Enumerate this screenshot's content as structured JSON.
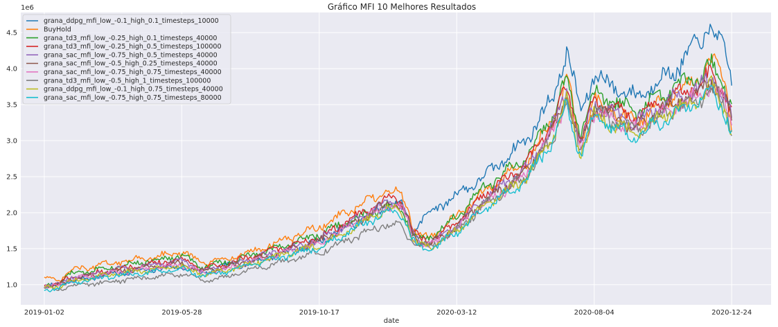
{
  "chart_data": {
    "type": "line",
    "title": "Gráfico MFI 10 Melhores Resultados",
    "xlabel": "date",
    "ylabel": "",
    "y_multiplier_label": "1e6",
    "ylim": [
      0.72,
      4.78
    ],
    "y_ticks": [
      "1.0",
      "1.5",
      "2.0",
      "2.5",
      "3.0",
      "3.5",
      "4.0",
      "4.5"
    ],
    "x_ticks": [
      "2019-01-02",
      "2019-05-28",
      "2019-10-17",
      "2020-03-12",
      "2020-08-04",
      "2020-12-24"
    ],
    "xlim": [
      -0.0342,
      1.0573
    ],
    "grid": true,
    "legend_position": "top-left",
    "x": [
      0.0,
      0.02,
      0.04,
      0.1,
      0.2,
      0.23,
      0.26,
      0.3,
      0.4,
      0.5,
      0.52,
      0.53,
      0.535,
      0.545,
      0.56,
      0.6,
      0.64,
      0.7,
      0.74,
      0.76,
      0.78,
      0.8,
      0.86,
      0.92,
      0.95,
      0.97,
      0.99,
      1.0
    ],
    "series": [
      {
        "name": "grana_ddpg_mfi_low_-0.1_high_0.1_timesteps_10000",
        "color": "#1f77b4",
        "values": [
          0.97,
          1.0,
          1.05,
          1.15,
          1.25,
          1.15,
          1.25,
          1.3,
          1.6,
          2.1,
          2.1,
          1.95,
          1.7,
          1.85,
          2.0,
          2.25,
          2.5,
          3.0,
          3.6,
          4.25,
          3.4,
          3.9,
          3.6,
          4.0,
          4.35,
          4.6,
          4.2,
          3.9
        ]
      },
      {
        "name": "BuyHold",
        "color": "#ff7f0e",
        "values": [
          1.1,
          1.05,
          1.2,
          1.3,
          1.45,
          1.3,
          1.35,
          1.45,
          1.8,
          2.3,
          2.25,
          2.05,
          1.8,
          1.7,
          1.65,
          1.95,
          2.3,
          2.7,
          3.3,
          3.85,
          3.0,
          3.55,
          3.25,
          3.65,
          3.85,
          4.1,
          3.85,
          3.2
        ]
      },
      {
        "name": "grana_td3_mfi_low_-0.25_high_0.1_timesteps_40000",
        "color": "#2ca02c",
        "values": [
          0.98,
          1.02,
          1.15,
          1.25,
          1.4,
          1.25,
          1.3,
          1.4,
          1.7,
          2.1,
          2.05,
          1.85,
          1.7,
          1.65,
          1.65,
          1.95,
          2.35,
          2.75,
          3.35,
          3.85,
          3.1,
          3.65,
          3.4,
          3.75,
          3.85,
          4.05,
          3.75,
          3.5
        ]
      },
      {
        "name": "grana_td3_mfi_low_-0.25_high_0.5_timesteps_100000",
        "color": "#d62728",
        "values": [
          1.0,
          1.02,
          1.1,
          1.2,
          1.35,
          1.22,
          1.28,
          1.38,
          1.65,
          2.2,
          2.15,
          1.95,
          1.75,
          1.65,
          1.6,
          1.85,
          2.25,
          2.65,
          3.25,
          3.75,
          3.0,
          3.55,
          3.3,
          3.65,
          3.75,
          3.95,
          3.65,
          3.35
        ]
      },
      {
        "name": "grana_sac_mfi_low_-0.75_high_0.5_timesteps_40000",
        "color": "#9467bd",
        "values": [
          0.99,
          1.0,
          1.1,
          1.2,
          1.33,
          1.2,
          1.25,
          1.35,
          1.62,
          2.15,
          2.1,
          1.9,
          1.72,
          1.62,
          1.58,
          1.82,
          2.2,
          2.6,
          3.2,
          3.7,
          2.95,
          3.5,
          3.25,
          3.6,
          3.7,
          3.9,
          3.6,
          3.3
        ]
      },
      {
        "name": "grana_sac_mfi_low_-0.5_high_0.25_timesteps_40000",
        "color": "#8c564b",
        "values": [
          0.98,
          0.99,
          1.08,
          1.18,
          1.3,
          1.18,
          1.23,
          1.33,
          1.6,
          2.12,
          2.08,
          1.88,
          1.7,
          1.6,
          1.56,
          1.8,
          2.15,
          2.55,
          3.15,
          3.65,
          2.9,
          3.45,
          3.2,
          3.55,
          3.65,
          3.85,
          3.55,
          3.25
        ]
      },
      {
        "name": "grana_sac_mfi_low_-0.75_high_0.75_timesteps_40000",
        "color": "#e377c2",
        "values": [
          0.97,
          0.98,
          1.07,
          1.17,
          1.28,
          1.16,
          1.21,
          1.31,
          1.58,
          2.1,
          2.05,
          1.86,
          1.68,
          1.58,
          1.54,
          1.78,
          2.12,
          2.52,
          3.1,
          3.6,
          2.85,
          3.4,
          3.15,
          3.5,
          3.6,
          3.8,
          3.5,
          3.2
        ]
      },
      {
        "name": "grana_td3_mfi_low_-0.5_high_1_timesteps_100000",
        "color": "#7f7f7f",
        "values": [
          0.95,
          0.94,
          0.98,
          1.05,
          1.15,
          1.05,
          1.1,
          1.2,
          1.45,
          1.85,
          1.8,
          1.65,
          1.6,
          1.55,
          1.52,
          1.75,
          2.1,
          2.5,
          3.05,
          3.55,
          2.85,
          3.4,
          3.15,
          3.45,
          3.55,
          3.75,
          3.45,
          3.2
        ]
      },
      {
        "name": "grana_ddpg_mfi_low_-0.1_high_0.75_timesteps_40000",
        "color": "#bcbd22",
        "values": [
          0.96,
          0.97,
          1.05,
          1.15,
          1.26,
          1.14,
          1.19,
          1.29,
          1.55,
          2.05,
          2.0,
          1.82,
          1.65,
          1.55,
          1.52,
          1.75,
          2.08,
          2.48,
          3.05,
          3.55,
          2.82,
          3.35,
          3.1,
          3.45,
          3.55,
          3.75,
          3.45,
          3.15
        ]
      },
      {
        "name": "grana_sac_mfi_low_-0.75_high_0.75_timesteps_80000",
        "color": "#17becf",
        "values": [
          0.92,
          0.96,
          1.03,
          1.12,
          1.22,
          1.12,
          1.17,
          1.27,
          1.52,
          2.02,
          1.97,
          1.8,
          1.62,
          1.52,
          1.48,
          1.72,
          2.05,
          2.45,
          3.0,
          3.5,
          2.78,
          3.3,
          3.05,
          3.4,
          3.5,
          3.7,
          3.4,
          3.1
        ]
      }
    ]
  }
}
